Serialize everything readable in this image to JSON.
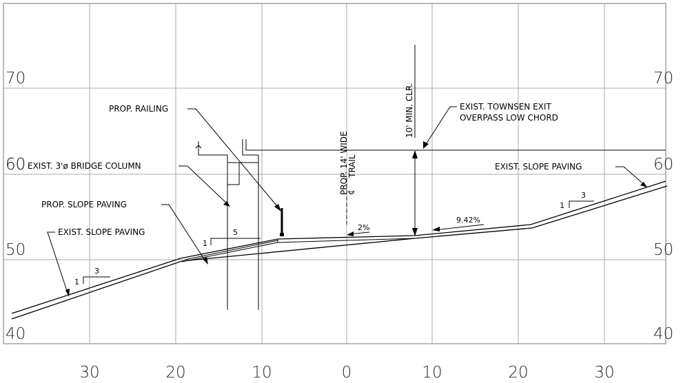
{
  "elevation_labels": [
    "70",
    "60",
    "50",
    "40"
  ],
  "offset_labels": [
    "30",
    "20",
    "10",
    "0",
    "10",
    "20",
    "30"
  ],
  "callouts": {
    "prop_railing": "PROP. RAILING",
    "exist_bridge_column": "EXIST. 3'ø BRIDGE COLUMN",
    "prop_slope_paving": "PROP. SLOPE PAVING",
    "exist_slope_paving_left": "EXIST. SLOPE PAVING",
    "exist_slope_paving_right": "EXIST. SLOPE PAVING",
    "trail_line1": "PROP. 14' WIDE",
    "trail_line2": "TRAIL",
    "centerline_symbol": "¢",
    "min_clearance": "10' MIN. CLR.",
    "overpass_line1": "EXIST. TOWNSEN EXIT",
    "overpass_line2": "OVERPASS LOW CHORD",
    "slope_2pct": "2%",
    "slope_942pct": "9.42%"
  },
  "slope_ratios": {
    "left_run": "3",
    "left_rise": "1",
    "mid_run": "5",
    "mid_rise": "1",
    "right_run": "3",
    "right_rise": "1"
  }
}
